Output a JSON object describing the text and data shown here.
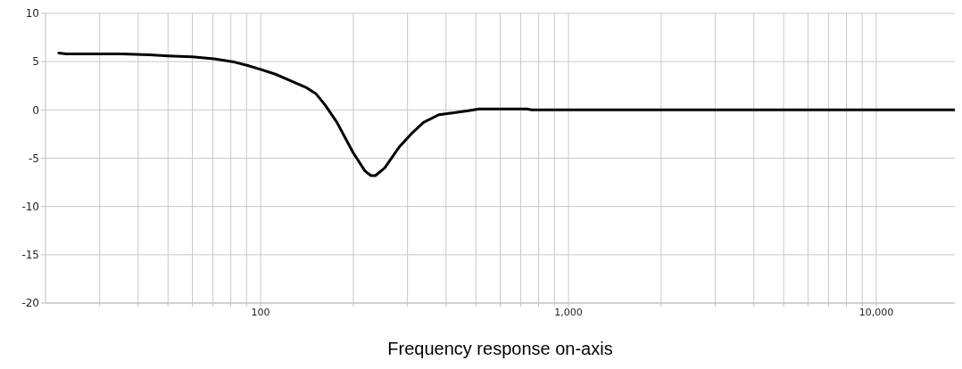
{
  "chart_data": {
    "type": "line",
    "xlabel": "Frequency response on-axis",
    "x": [
      22.1,
      23.4,
      30,
      35.4,
      43.6,
      50,
      60,
      70.5,
      81,
      90.8,
      100,
      111.7,
      125.6,
      141,
      151,
      162,
      177,
      199.5,
      218,
      228,
      236,
      253,
      281,
      308,
      338,
      379,
      424,
      467,
      513,
      732,
      760,
      1000,
      10000,
      18000
    ],
    "series": [
      {
        "color": "#000000",
        "values": [
          5.9,
          5.8,
          5.8,
          5.8,
          5.7,
          5.6,
          5.5,
          5.3,
          5.0,
          4.6,
          4.2,
          3.7,
          3.0,
          2.3,
          1.7,
          0.5,
          -1.3,
          -4.4,
          -6.3,
          -6.8,
          -6.8,
          -6.0,
          -3.9,
          -2.5,
          -1.3,
          -0.5,
          -0.3,
          -0.1,
          0.1,
          0.1,
          0,
          0,
          0,
          0
        ]
      }
    ],
    "log": "x",
    "xlim": [
      20,
      18000
    ],
    "xticks": [
      {
        "value": 30,
        "label": null
      },
      {
        "value": 40,
        "label": null
      },
      {
        "value": 50,
        "label": null
      },
      {
        "value": 60,
        "label": null
      },
      {
        "value": 70,
        "label": null
      },
      {
        "value": 80,
        "label": null
      },
      {
        "value": 90,
        "label": null
      },
      {
        "value": 100,
        "label": "100"
      },
      {
        "value": 200,
        "label": null
      },
      {
        "value": 300,
        "label": null
      },
      {
        "value": 400,
        "label": null
      },
      {
        "value": 500,
        "label": null
      },
      {
        "value": 600,
        "label": null
      },
      {
        "value": 700,
        "label": null
      },
      {
        "value": 800,
        "label": null
      },
      {
        "value": 900,
        "label": null
      },
      {
        "value": 1000,
        "label": "1,000"
      },
      {
        "value": 2000,
        "label": null
      },
      {
        "value": 3000,
        "label": null
      },
      {
        "value": 4000,
        "label": null
      },
      {
        "value": 5000,
        "label": null
      },
      {
        "value": 6000,
        "label": null
      },
      {
        "value": 7000,
        "label": null
      },
      {
        "value": 8000,
        "label": null
      },
      {
        "value": 9000,
        "label": null
      },
      {
        "value": 10000,
        "label": "10,000"
      }
    ],
    "ylim": [
      -20,
      10
    ],
    "yticks": [
      -20,
      -15,
      -10,
      -5,
      0,
      5,
      10
    ],
    "grid": true,
    "line_style": "solid"
  }
}
